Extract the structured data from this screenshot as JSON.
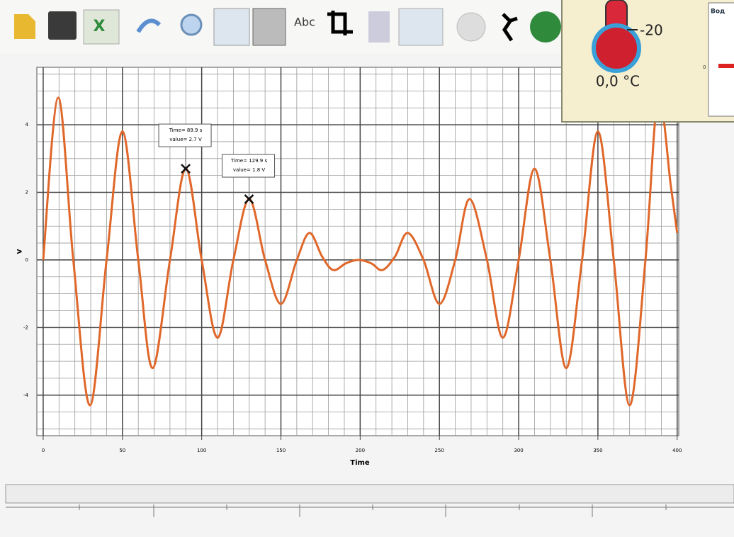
{
  "thermometer": {
    "scale_label": "-20",
    "reading": "0,0 °C"
  },
  "side_panel": {
    "label": "Вод",
    "tick": "0"
  },
  "chart_data": {
    "type": "line",
    "x_label": "Time",
    "y_label": "V",
    "x": [
      0,
      9.5,
      19,
      29.5,
      40,
      50,
      60,
      69,
      80,
      90,
      100,
      110,
      120,
      130,
      140,
      150,
      160,
      168,
      176,
      183,
      191,
      199,
      207,
      214,
      222,
      230,
      240,
      250,
      260,
      269,
      280,
      290,
      300,
      310,
      320,
      330,
      340,
      350,
      360,
      370,
      380,
      388,
      396,
      400
    ],
    "series": [
      {
        "color": "#e0672a",
        "values": [
          0,
          4.8,
          0,
          -4.3,
          0,
          3.8,
          0,
          -3.2,
          0,
          2.7,
          0,
          -2.3,
          0,
          1.8,
          0,
          -1.3,
          0,
          0.8,
          0.1,
          -0.3,
          -0.1,
          0,
          -0.1,
          -0.3,
          0.1,
          0.8,
          0,
          -1.3,
          0,
          1.8,
          0,
          -2.3,
          0,
          2.7,
          0,
          -3.2,
          0,
          3.8,
          0,
          -4.3,
          0,
          4.8,
          2.2,
          0.8
        ]
      }
    ],
    "annotations": [
      {
        "lines": [
          "Time= 89.9 s",
          "value= 2.7 V"
        ],
        "x": 89.9,
        "y": 2.7
      },
      {
        "lines": [
          "Time= 129.9 s",
          "value= 1.8 V"
        ],
        "x": 129.9,
        "y": 1.8
      }
    ],
    "xlim": [
      -4,
      401
    ],
    "ylim": [
      -5.2,
      5.7
    ],
    "xticks": [
      0,
      50,
      100,
      150,
      200,
      250,
      300,
      350,
      400
    ],
    "yticks": [
      -4,
      -2,
      0,
      2,
      4
    ],
    "grid": true,
    "minor_grid": true
  }
}
